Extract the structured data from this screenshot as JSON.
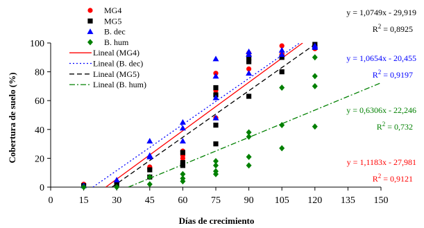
{
  "chart_data": {
    "type": "scatter",
    "xlabel": "Días de crecimiento",
    "ylabel": "Cobertura de suelo (%)",
    "xlim": [
      0,
      150
    ],
    "ylim": [
      0,
      100
    ],
    "xticks": [
      "0",
      "15",
      "30",
      "45",
      "60",
      "75",
      "90",
      "105",
      "120",
      "135",
      "150"
    ],
    "yticks": [
      "0",
      "20",
      "40",
      "60",
      "80",
      "100"
    ],
    "grid": false,
    "legend_position": "top-left",
    "series": [
      {
        "name": "MG4",
        "marker": "circle",
        "color": "#ff0000",
        "points": [
          [
            15,
            2
          ],
          [
            30,
            3
          ],
          [
            45,
            13
          ],
          [
            45,
            14
          ],
          [
            60,
            20
          ],
          [
            60,
            22
          ],
          [
            60,
            25
          ],
          [
            75,
            48
          ],
          [
            75,
            67
          ],
          [
            75,
            79
          ],
          [
            90,
            82
          ],
          [
            90,
            88
          ],
          [
            90,
            93
          ],
          [
            105,
            92
          ],
          [
            105,
            98
          ],
          [
            120,
            96
          ],
          [
            120,
            98
          ]
        ]
      },
      {
        "name": "MG5",
        "marker": "square",
        "color": "#000000",
        "points": [
          [
            15,
            1
          ],
          [
            30,
            2
          ],
          [
            45,
            7
          ],
          [
            45,
            12
          ],
          [
            60,
            15
          ],
          [
            60,
            17
          ],
          [
            60,
            24
          ],
          [
            75,
            30
          ],
          [
            75,
            43
          ],
          [
            75,
            64
          ],
          [
            75,
            69
          ],
          [
            90,
            63
          ],
          [
            90,
            87
          ],
          [
            90,
            90
          ],
          [
            105,
            80
          ],
          [
            105,
            90
          ],
          [
            120,
            97
          ],
          [
            120,
            99
          ]
        ]
      },
      {
        "name": "B. dec",
        "marker": "triangle",
        "color": "#0000ff",
        "points": [
          [
            15,
            1
          ],
          [
            30,
            5
          ],
          [
            45,
            21
          ],
          [
            45,
            22
          ],
          [
            45,
            32
          ],
          [
            60,
            32
          ],
          [
            60,
            41
          ],
          [
            60,
            45
          ],
          [
            75,
            48
          ],
          [
            75,
            62
          ],
          [
            75,
            77
          ],
          [
            75,
            89
          ],
          [
            90,
            79
          ],
          [
            90,
            92
          ],
          [
            90,
            94
          ],
          [
            105,
            92
          ],
          [
            105,
            95
          ],
          [
            120,
            97
          ],
          [
            120,
            98
          ]
        ]
      },
      {
        "name": "B. hum",
        "marker": "diamond",
        "color": "#008000",
        "points": [
          [
            15,
            0
          ],
          [
            30,
            0
          ],
          [
            45,
            2
          ],
          [
            45,
            7
          ],
          [
            60,
            4
          ],
          [
            60,
            6
          ],
          [
            60,
            9
          ],
          [
            75,
            9
          ],
          [
            75,
            11
          ],
          [
            75,
            15
          ],
          [
            75,
            18
          ],
          [
            90,
            15
          ],
          [
            90,
            21
          ],
          [
            90,
            35
          ],
          [
            90,
            38
          ],
          [
            105,
            27
          ],
          [
            105,
            43
          ],
          [
            105,
            69
          ],
          [
            120,
            42
          ],
          [
            120,
            70
          ],
          [
            120,
            77
          ],
          [
            120,
            90
          ]
        ]
      }
    ],
    "trendlines": [
      {
        "name": "Lineal (MG4)",
        "slope": 1.1183,
        "intercept": -27.981,
        "color": "#ff0000",
        "dash": "solid",
        "equation": "y = 1,1183x - 27,981",
        "r2_label": "R",
        "r2_value": "2",
        "r2_rest": " = 0,9121"
      },
      {
        "name": "Lineal (B. dec)",
        "slope": 1.0654,
        "intercept": -20.455,
        "color": "#0000ff",
        "dash": "dot",
        "equation": "y = 1,0654x - 20,455",
        "r2_label": "R",
        "r2_value": "2",
        "r2_rest": " = 0,9197"
      },
      {
        "name": "Lineal (MG5)",
        "slope": 1.0749,
        "intercept": -29.919,
        "color": "#000000",
        "dash": "dash",
        "equation": "y = 1,0749x - 29,919",
        "r2_label": "R",
        "r2_value": "2",
        "r2_rest": " = 0,8925"
      },
      {
        "name": "Lineal (B. hum)",
        "slope": 0.6306,
        "intercept": -22.246,
        "color": "#008000",
        "dash": "dashdot",
        "equation": "y = 0,6306x - 22,246",
        "r2_label": "R",
        "r2_value": "2",
        "r2_rest": " = 0,732"
      }
    ]
  }
}
